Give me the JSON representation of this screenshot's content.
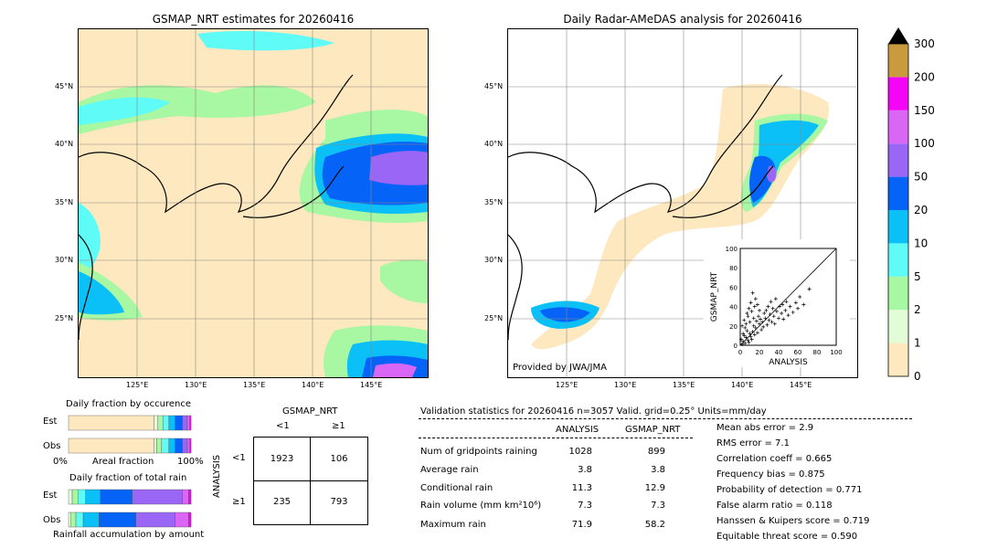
{
  "left_map": {
    "title": "GSMAP_NRT estimates for 20260416",
    "lat_labels": [
      "45°N",
      "40°N",
      "35°N",
      "30°N",
      "25°N"
    ],
    "lon_labels": [
      "125°E",
      "130°E",
      "135°E",
      "140°E",
      "145°E"
    ]
  },
  "right_map": {
    "title": "Daily Radar-AMeDAS analysis for 20260416",
    "lat_labels": [
      "45°N",
      "40°N",
      "35°N",
      "30°N",
      "25°N"
    ],
    "lon_labels": [
      "125°E",
      "130°E",
      "135°E",
      "140°E",
      "145°E"
    ],
    "provider": "Provided by JWA/JMA"
  },
  "colorbar": {
    "levels": [
      "0",
      "1",
      "2",
      "5",
      "10",
      "20",
      "50",
      "100",
      "150",
      "200",
      "300"
    ],
    "colors": [
      "#fde8bf",
      "#e3fcd8",
      "#a8f7a2",
      "#5efbf7",
      "#0ac0f7",
      "#0563f7",
      "#9966f5",
      "#da66f5",
      "#f505f5",
      "#c99a3e"
    ]
  },
  "chart_data": [
    {
      "type": "scatter",
      "xlabel": "ANALYSIS",
      "ylabel": "GSMAP_NRT",
      "xlim": [
        0,
        100
      ],
      "ylim": [
        0,
        100
      ],
      "xticks": [
        "0",
        "20",
        "40",
        "60",
        "80",
        "100"
      ],
      "yticks": [
        "0",
        "20",
        "40",
        "60",
        "80",
        "100"
      ],
      "note": "dense cluster near origin; points extend to ~(72, 58)",
      "points": [
        [
          2,
          1
        ],
        [
          3,
          4
        ],
        [
          5,
          2
        ],
        [
          6,
          8
        ],
        [
          8,
          5
        ],
        [
          10,
          12
        ],
        [
          12,
          6
        ],
        [
          4,
          10
        ],
        [
          7,
          15
        ],
        [
          9,
          3
        ],
        [
          11,
          9
        ],
        [
          13,
          14
        ],
        [
          15,
          11
        ],
        [
          14,
          20
        ],
        [
          16,
          18
        ],
        [
          18,
          13
        ],
        [
          17,
          25
        ],
        [
          20,
          22
        ],
        [
          22,
          16
        ],
        [
          19,
          30
        ],
        [
          21,
          27
        ],
        [
          24,
          19
        ],
        [
          25,
          33
        ],
        [
          23,
          24
        ],
        [
          26,
          28
        ],
        [
          28,
          21
        ],
        [
          27,
          36
        ],
        [
          30,
          26
        ],
        [
          29,
          40
        ],
        [
          31,
          32
        ],
        [
          33,
          24
        ],
        [
          32,
          45
        ],
        [
          35,
          30
        ],
        [
          34,
          38
        ],
        [
          36,
          22
        ],
        [
          38,
          35
        ],
        [
          40,
          28
        ],
        [
          37,
          48
        ],
        [
          41,
          40
        ],
        [
          43,
          33
        ],
        [
          45,
          27
        ],
        [
          44,
          42
        ],
        [
          47,
          36
        ],
        [
          50,
          31
        ],
        [
          48,
          45
        ],
        [
          52,
          40
        ],
        [
          55,
          34
        ],
        [
          58,
          44
        ],
        [
          60,
          38
        ],
        [
          62,
          50
        ],
        [
          66,
          42
        ],
        [
          72,
          58
        ],
        [
          1,
          6
        ],
        [
          3,
          12
        ],
        [
          5,
          18
        ],
        [
          6,
          22
        ],
        [
          2,
          20
        ],
        [
          4,
          26
        ],
        [
          8,
          30
        ],
        [
          10,
          24
        ],
        [
          12,
          35
        ],
        [
          14,
          28
        ],
        [
          9,
          38
        ],
        [
          11,
          44
        ],
        [
          7,
          33
        ],
        [
          15,
          40
        ],
        [
          16,
          48
        ],
        [
          18,
          42
        ],
        [
          13,
          54
        ],
        [
          20,
          36
        ]
      ]
    },
    {
      "type": "bar",
      "title": "Daily fraction by occurence",
      "series_labels": [
        "Est",
        "Obs"
      ],
      "xlabel_left": "0%",
      "xlabel_mid": "Areal fraction",
      "xlabel_right": "100%",
      "stacked_fractions": {
        "Est": [
          0.7,
          0.03,
          0.04,
          0.05,
          0.05,
          0.06,
          0.04,
          0.02,
          0.01,
          0.0
        ],
        "Obs": [
          0.7,
          0.02,
          0.04,
          0.06,
          0.05,
          0.06,
          0.04,
          0.02,
          0.01,
          0.0
        ]
      }
    },
    {
      "type": "bar",
      "title": "Daily fraction of total rain",
      "series_labels": [
        "Est",
        "Obs"
      ],
      "xlabel_mid": "Rainfall accumulation by amount",
      "stacked_fractions": {
        "Est": [
          0.0,
          0.03,
          0.05,
          0.06,
          0.12,
          0.26,
          0.41,
          0.05,
          0.02,
          0.0
        ],
        "Obs": [
          0.0,
          0.02,
          0.04,
          0.06,
          0.13,
          0.3,
          0.32,
          0.11,
          0.02,
          0.0
        ]
      }
    },
    {
      "type": "table",
      "title": "GSMAP_NRT",
      "col_labels": [
        "<1",
        "≥1"
      ],
      "row_title": "ANALYSIS",
      "row_labels": [
        "<1",
        "≥1"
      ],
      "cells": [
        [
          "1923",
          "106"
        ],
        [
          "235",
          "793"
        ]
      ]
    }
  ],
  "validation": {
    "header": "Validation statistics for 20260416  n=3057 Valid. grid=0.25° Units=mm/day",
    "col_analysis": "ANALYSIS",
    "col_gsmap": "GSMAP_NRT",
    "rows": [
      {
        "label": "Num of gridpoints raining",
        "analysis": "1028",
        "gsmap": "899"
      },
      {
        "label": "Average rain",
        "analysis": "3.8",
        "gsmap": "3.8"
      },
      {
        "label": "Conditional rain",
        "analysis": "11.3",
        "gsmap": "12.9"
      },
      {
        "label": "Rain volume (mm km²10⁶)",
        "analysis": "7.3",
        "gsmap": "7.3"
      },
      {
        "label": "Maximum rain",
        "analysis": "71.9",
        "gsmap": "58.2"
      }
    ],
    "scores": [
      "Mean abs error =    2.9",
      "RMS error =    7.1",
      "Correlation coeff =  0.665",
      "Frequency bias =  0.875",
      "Probability of detection =  0.771",
      "False alarm ratio =  0.118",
      "Hanssen & Kuipers score =  0.719",
      "Equitable threat score =  0.590"
    ]
  }
}
